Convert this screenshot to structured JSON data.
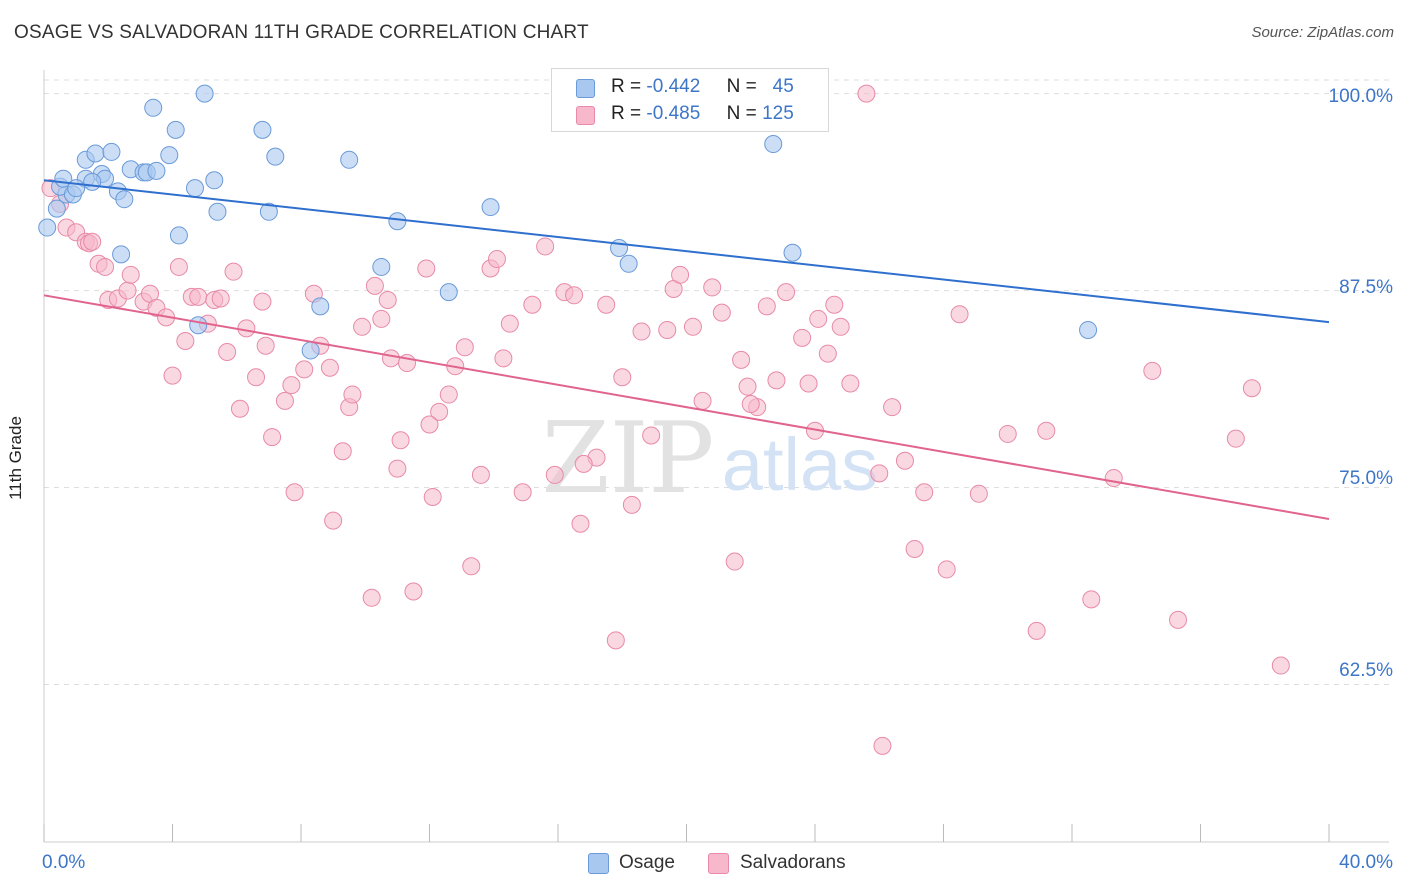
{
  "title": "OSAGE VS SALVADORAN 11TH GRADE CORRELATION CHART",
  "source": "Source: ZipAtlas.com",
  "watermark": {
    "zip": "ZIP",
    "atlas": "atlas"
  },
  "legend": [
    {
      "r_label": "R =",
      "r_value": "-0.442",
      "n_label": "N =",
      "n_value": "45"
    },
    {
      "r_label": "R =",
      "r_value": "-0.485",
      "n_label": "N =",
      "n_value": "125"
    }
  ],
  "bottom_legend": [
    "Osage",
    "Salvadorans"
  ],
  "colors": {
    "osage_fill": "#a8c8f0",
    "osage_stroke": "#6a9ad8",
    "osage_line": "#2f6fce",
    "salv_fill": "#f6b8ca",
    "salv_stroke": "#e88aa8",
    "salv_line": "#e0648e",
    "tick_text": "#3d76c7",
    "grid": "#dddddd"
  },
  "chart_data": {
    "type": "scatter",
    "title": "OSAGE VS SALVADORAN 11TH GRADE CORRELATION CHART",
    "xlabel": "",
    "ylabel": "11th Grade",
    "xlim": [
      0,
      40
    ],
    "ylim": [
      52.5,
      101.5
    ],
    "x_tick_labels": [
      "0.0%",
      "40.0%"
    ],
    "y_ticks": [
      62.5,
      75.0,
      87.5,
      100.0
    ],
    "y_tick_labels": [
      "62.5%",
      "75.0%",
      "87.5%",
      "100.0%"
    ],
    "grid": true,
    "legend_position": "top-center",
    "series": [
      {
        "name": "Osage",
        "trend": [
          [
            0,
            94.5
          ],
          [
            40,
            85.5
          ]
        ],
        "points": [
          [
            0.1,
            91.5
          ],
          [
            0.4,
            92.7
          ],
          [
            0.7,
            93.6
          ],
          [
            0.5,
            94.1
          ],
          [
            0.6,
            94.6
          ],
          [
            0.9,
            93.6
          ],
          [
            1.3,
            94.6
          ],
          [
            1.3,
            95.8
          ],
          [
            1.6,
            96.2
          ],
          [
            2.1,
            96.3
          ],
          [
            1.8,
            94.9
          ],
          [
            1.9,
            94.6
          ],
          [
            2.3,
            93.8
          ],
          [
            2.5,
            93.3
          ],
          [
            2.4,
            89.8
          ],
          [
            2.7,
            95.2
          ],
          [
            3.1,
            95.0
          ],
          [
            3.2,
            95.0
          ],
          [
            3.5,
            95.1
          ],
          [
            3.4,
            99.1
          ],
          [
            3.9,
            96.1
          ],
          [
            4.1,
            97.7
          ],
          [
            4.2,
            91.0
          ],
          [
            4.7,
            94.0
          ],
          [
            5.0,
            100.0
          ],
          [
            5.3,
            94.5
          ],
          [
            5.4,
            92.5
          ],
          [
            6.8,
            97.7
          ],
          [
            7.0,
            92.5
          ],
          [
            7.2,
            96.0
          ],
          [
            8.3,
            83.7
          ],
          [
            8.6,
            86.5
          ],
          [
            9.5,
            95.8
          ],
          [
            10.5,
            89.0
          ],
          [
            11.0,
            91.9
          ],
          [
            12.6,
            87.4
          ],
          [
            13.9,
            92.8
          ],
          [
            17.9,
            90.2
          ],
          [
            18.2,
            89.2
          ],
          [
            22.7,
            96.8
          ],
          [
            23.3,
            89.9
          ],
          [
            32.5,
            85.0
          ],
          [
            4.8,
            85.3
          ],
          [
            1.0,
            94.0
          ],
          [
            1.5,
            94.4
          ]
        ]
      },
      {
        "name": "Salvadorans",
        "trend": [
          [
            0,
            87.2
          ],
          [
            40,
            73.0
          ]
        ],
        "points": [
          [
            0.2,
            94.0
          ],
          [
            0.5,
            93.0
          ],
          [
            0.7,
            91.5
          ],
          [
            1.0,
            91.2
          ],
          [
            1.3,
            90.6
          ],
          [
            1.4,
            90.5
          ],
          [
            1.5,
            90.6
          ],
          [
            1.7,
            89.2
          ],
          [
            1.9,
            89.0
          ],
          [
            2.0,
            86.9
          ],
          [
            2.3,
            87.0
          ],
          [
            2.6,
            87.5
          ],
          [
            2.7,
            88.5
          ],
          [
            3.1,
            86.8
          ],
          [
            3.3,
            87.3
          ],
          [
            3.5,
            86.4
          ],
          [
            3.8,
            85.8
          ],
          [
            4.0,
            82.1
          ],
          [
            4.2,
            89.0
          ],
          [
            4.4,
            84.3
          ],
          [
            4.6,
            87.1
          ],
          [
            4.8,
            87.1
          ],
          [
            5.1,
            85.4
          ],
          [
            5.3,
            86.9
          ],
          [
            5.5,
            87.0
          ],
          [
            5.7,
            83.6
          ],
          [
            5.9,
            88.7
          ],
          [
            6.1,
            80.0
          ],
          [
            6.3,
            85.1
          ],
          [
            6.6,
            82.0
          ],
          [
            6.9,
            84.0
          ],
          [
            6.8,
            86.8
          ],
          [
            7.1,
            78.2
          ],
          [
            7.5,
            80.5
          ],
          [
            7.7,
            81.5
          ],
          [
            7.8,
            74.7
          ],
          [
            8.1,
            82.5
          ],
          [
            8.4,
            87.3
          ],
          [
            8.6,
            84.0
          ],
          [
            8.9,
            82.6
          ],
          [
            9.0,
            72.9
          ],
          [
            9.3,
            77.3
          ],
          [
            9.5,
            80.1
          ],
          [
            9.6,
            80.9
          ],
          [
            9.9,
            85.2
          ],
          [
            10.2,
            68.0
          ],
          [
            10.3,
            87.8
          ],
          [
            10.5,
            85.7
          ],
          [
            10.7,
            86.9
          ],
          [
            10.8,
            83.2
          ],
          [
            11.0,
            76.2
          ],
          [
            11.1,
            78.0
          ],
          [
            11.3,
            82.9
          ],
          [
            11.5,
            68.4
          ],
          [
            11.9,
            88.9
          ],
          [
            12.1,
            74.4
          ],
          [
            12.3,
            79.8
          ],
          [
            12.6,
            80.9
          ],
          [
            12.8,
            82.7
          ],
          [
            13.1,
            83.9
          ],
          [
            13.3,
            70.0
          ],
          [
            13.6,
            75.8
          ],
          [
            13.9,
            88.9
          ],
          [
            14.1,
            89.5
          ],
          [
            14.3,
            83.2
          ],
          [
            14.5,
            85.4
          ],
          [
            14.9,
            74.7
          ],
          [
            15.2,
            86.6
          ],
          [
            15.6,
            90.3
          ],
          [
            15.9,
            75.8
          ],
          [
            16.2,
            87.4
          ],
          [
            16.5,
            87.2
          ],
          [
            16.7,
            72.7
          ],
          [
            17.2,
            76.9
          ],
          [
            17.5,
            86.6
          ],
          [
            17.8,
            65.3
          ],
          [
            18.0,
            82.0
          ],
          [
            18.3,
            73.9
          ],
          [
            18.6,
            84.9
          ],
          [
            18.9,
            78.3
          ],
          [
            19.4,
            85.0
          ],
          [
            19.6,
            87.6
          ],
          [
            19.8,
            88.5
          ],
          [
            20.2,
            85.2
          ],
          [
            20.5,
            80.5
          ],
          [
            20.8,
            87.7
          ],
          [
            21.1,
            86.1
          ],
          [
            21.5,
            70.3
          ],
          [
            21.7,
            83.1
          ],
          [
            21.9,
            81.4
          ],
          [
            22.2,
            80.1
          ],
          [
            22.5,
            86.5
          ],
          [
            22.8,
            81.8
          ],
          [
            23.1,
            87.4
          ],
          [
            23.6,
            84.5
          ],
          [
            23.8,
            81.6
          ],
          [
            24.1,
            85.7
          ],
          [
            24.4,
            83.5
          ],
          [
            24.6,
            86.6
          ],
          [
            24.8,
            85.2
          ],
          [
            25.1,
            81.6
          ],
          [
            25.6,
            100.0
          ],
          [
            26.1,
            58.6
          ],
          [
            26.4,
            80.1
          ],
          [
            26.8,
            76.7
          ],
          [
            27.1,
            71.1
          ],
          [
            27.4,
            74.7
          ],
          [
            28.1,
            69.8
          ],
          [
            28.5,
            86.0
          ],
          [
            29.1,
            74.6
          ],
          [
            30.0,
            78.4
          ],
          [
            30.9,
            65.9
          ],
          [
            31.2,
            78.6
          ],
          [
            32.6,
            67.9
          ],
          [
            33.3,
            75.6
          ],
          [
            34.5,
            82.4
          ],
          [
            35.3,
            66.6
          ],
          [
            37.1,
            78.1
          ],
          [
            37.6,
            81.3
          ],
          [
            38.5,
            63.7
          ],
          [
            26.0,
            75.9
          ],
          [
            22.0,
            80.3
          ],
          [
            12.0,
            79.0
          ],
          [
            16.8,
            76.5
          ],
          [
            24.0,
            78.6
          ]
        ]
      }
    ]
  }
}
